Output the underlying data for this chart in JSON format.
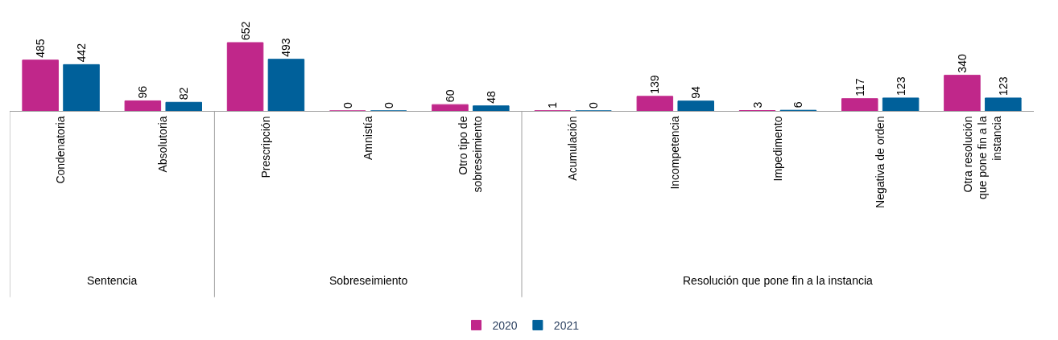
{
  "chart_data": {
    "type": "bar",
    "categories": [
      "Condenatoria",
      "Absolutoria",
      "Prescripción",
      "Amnistía",
      "Otro tipo de\nsobreseimiento",
      "Acumulación",
      "Incompetencia",
      "Impedimento",
      "Negativa de orden",
      "Otra resolución\nque pone fin a la\ninstancia"
    ],
    "series": [
      {
        "name": "2020",
        "color": "#c0278a",
        "values": [
          485,
          96,
          652,
          0,
          60,
          1,
          139,
          3,
          117,
          340
        ]
      },
      {
        "name": "2021",
        "color": "#00609a",
        "values": [
          442,
          82,
          493,
          0,
          48,
          0,
          94,
          6,
          123,
          123
        ]
      }
    ],
    "annotations": [
      "Sentencia",
      "Sobreseimiento",
      "Resolución que pone fin a la instancia"
    ],
    "data_labels": true,
    "legend": "bottom"
  }
}
